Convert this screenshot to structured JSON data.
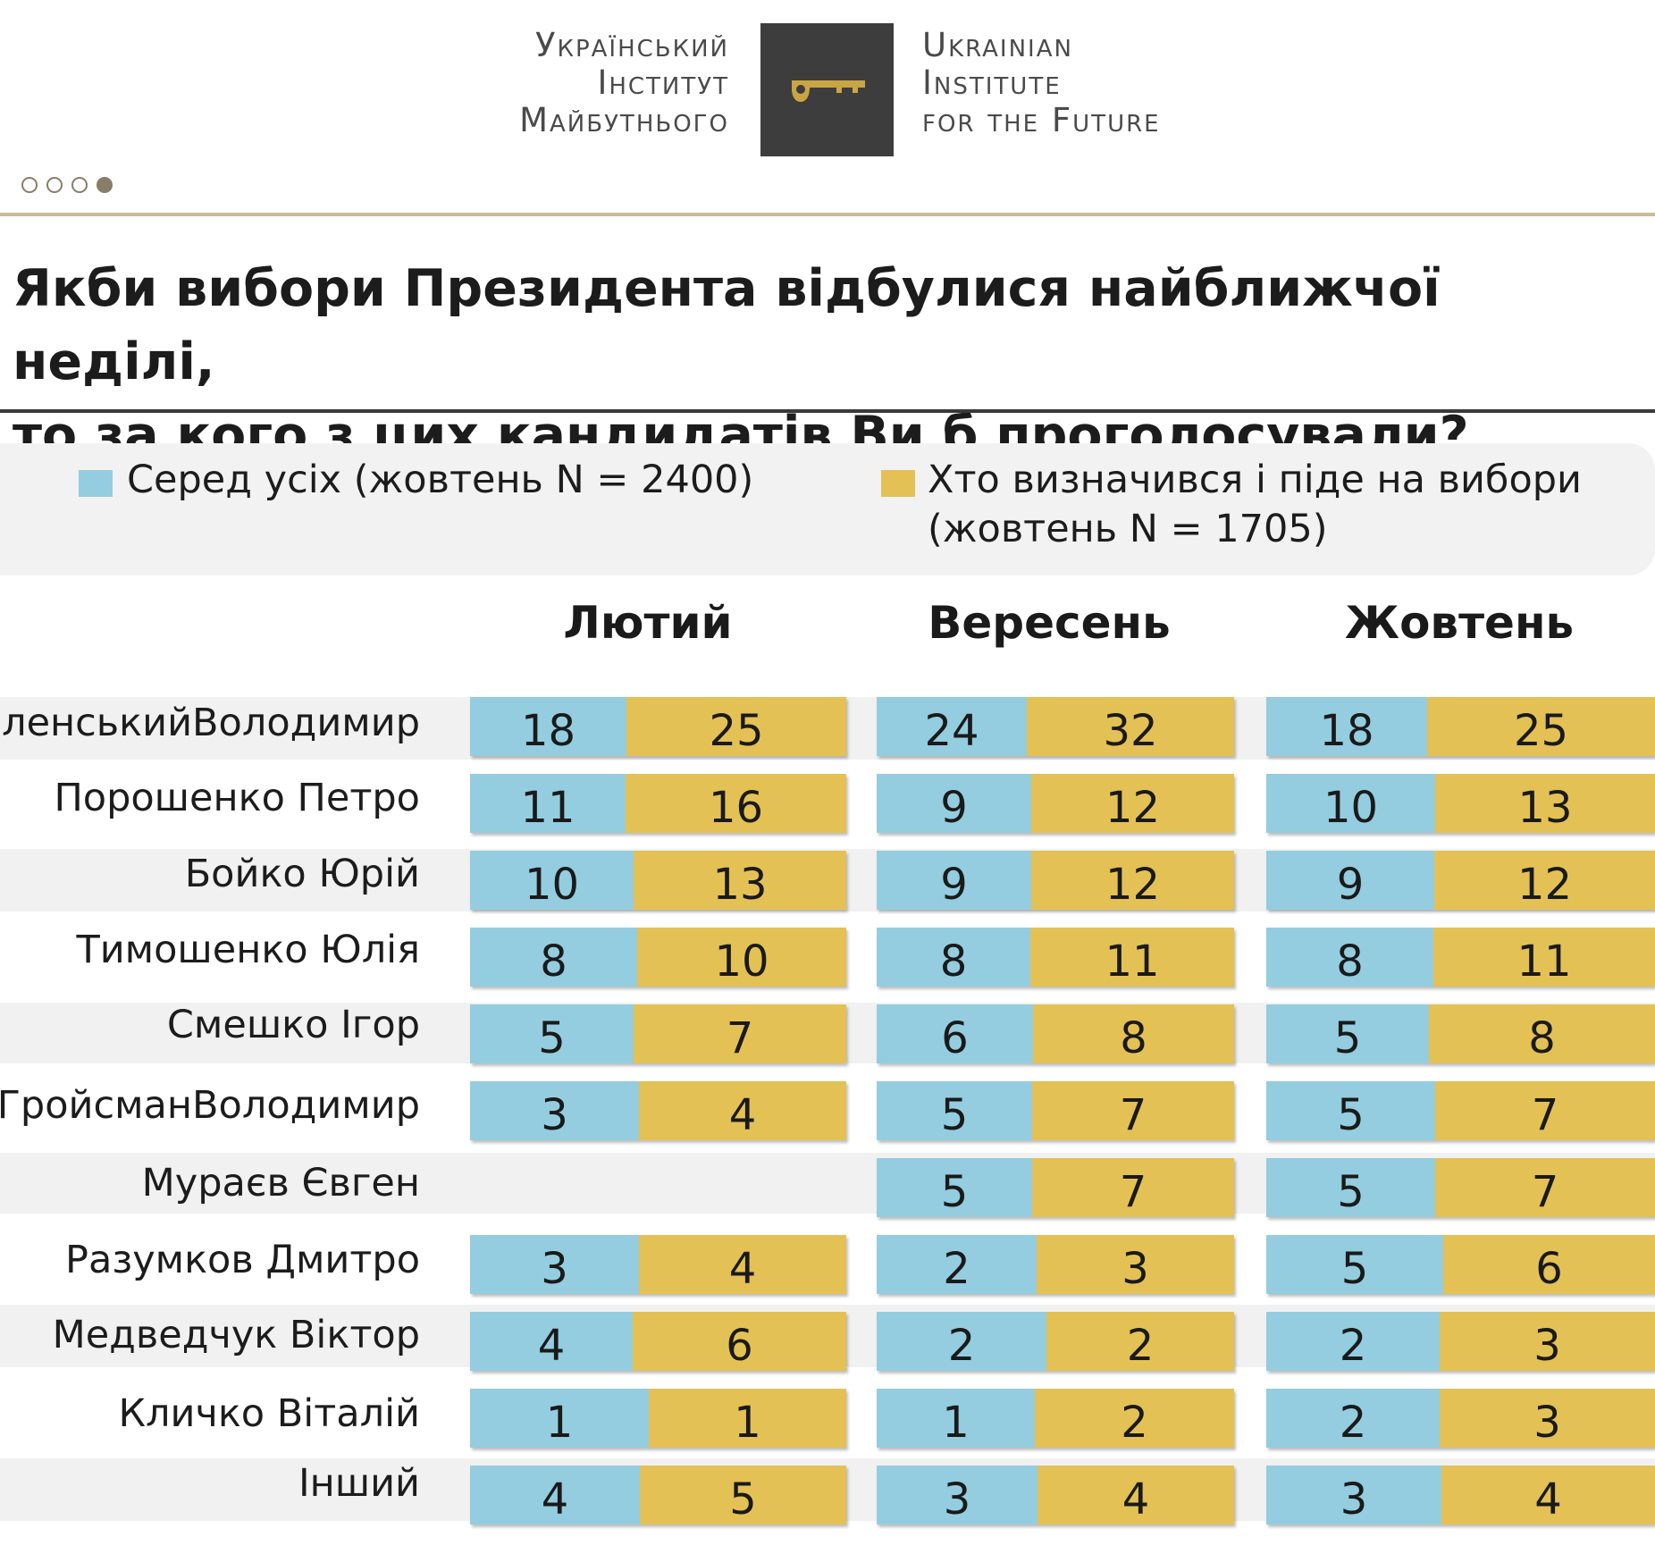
{
  "header": {
    "logo_ua_lines": [
      "Український",
      "Інститут",
      "Майбутнього"
    ],
    "logo_en_lines": [
      "Ukrainian",
      "Institute",
      "for the Future"
    ],
    "logo_icon": "key-icon",
    "pager": {
      "total": 4,
      "active": 4
    }
  },
  "title_lines": [
    "Якби вибори Президента відбулися найближчої неділі,",
    "то за кого з цих кандидатів Ви б проголосували?"
  ],
  "legend": {
    "all": "Серед усіх (жовтень N = 2400)",
    "decided_line1": "Хто визначився і піде на вибори",
    "decided_line2": "(жовтень N = 1705)"
  },
  "colors": {
    "all": "#93cddf",
    "decided": "#e4c155",
    "accent": "#8a7d68"
  },
  "chart_data": {
    "type": "table",
    "title": "Якби вибори Президента відбулися найближчої неділі, то за кого з цих кандидатів Ви б проголосували?",
    "series": [
      {
        "name": "Серед усіх (жовтень N = 2400)"
      },
      {
        "name": "Хто визначився і піде на вибори (жовтень N = 1705)"
      }
    ],
    "months": [
      "Лютий",
      "Вересень",
      "Жовтень"
    ],
    "rows": [
      {
        "name": [
          "Зеленський",
          "Володимир"
        ],
        "values": [
          [
            18,
            25
          ],
          [
            24,
            32
          ],
          [
            18,
            25
          ]
        ]
      },
      {
        "name": [
          "Порошенко Петро"
        ],
        "values": [
          [
            11,
            16
          ],
          [
            9,
            12
          ],
          [
            10,
            13
          ]
        ]
      },
      {
        "name": [
          "Бойко Юрій"
        ],
        "values": [
          [
            10,
            13
          ],
          [
            9,
            12
          ],
          [
            9,
            12
          ]
        ]
      },
      {
        "name": [
          "Тимошенко Юлія"
        ],
        "values": [
          [
            8,
            10
          ],
          [
            8,
            11
          ],
          [
            8,
            11
          ]
        ]
      },
      {
        "name": [
          "Смешко Ігор"
        ],
        "values": [
          [
            5,
            7
          ],
          [
            6,
            8
          ],
          [
            5,
            8
          ]
        ]
      },
      {
        "name": [
          "Гройсман",
          "Володимир"
        ],
        "values": [
          [
            3,
            4
          ],
          [
            5,
            7
          ],
          [
            5,
            7
          ]
        ]
      },
      {
        "name": [
          "Мураєв Євген"
        ],
        "values": [
          null,
          [
            5,
            7
          ],
          [
            5,
            7
          ]
        ]
      },
      {
        "name": [
          "Разумков Дмитро"
        ],
        "values": [
          [
            3,
            4
          ],
          [
            2,
            3
          ],
          [
            5,
            6
          ]
        ]
      },
      {
        "name": [
          "Медведчук Віктор"
        ],
        "values": [
          [
            4,
            6
          ],
          [
            2,
            2
          ],
          [
            2,
            3
          ]
        ]
      },
      {
        "name": [
          "Кличко Віталій"
        ],
        "values": [
          [
            1,
            1
          ],
          [
            1,
            2
          ],
          [
            2,
            3
          ]
        ]
      },
      {
        "name": [
          "Інший"
        ],
        "values": [
          [
            4,
            5
          ],
          [
            3,
            4
          ],
          [
            3,
            4
          ]
        ]
      }
    ]
  }
}
